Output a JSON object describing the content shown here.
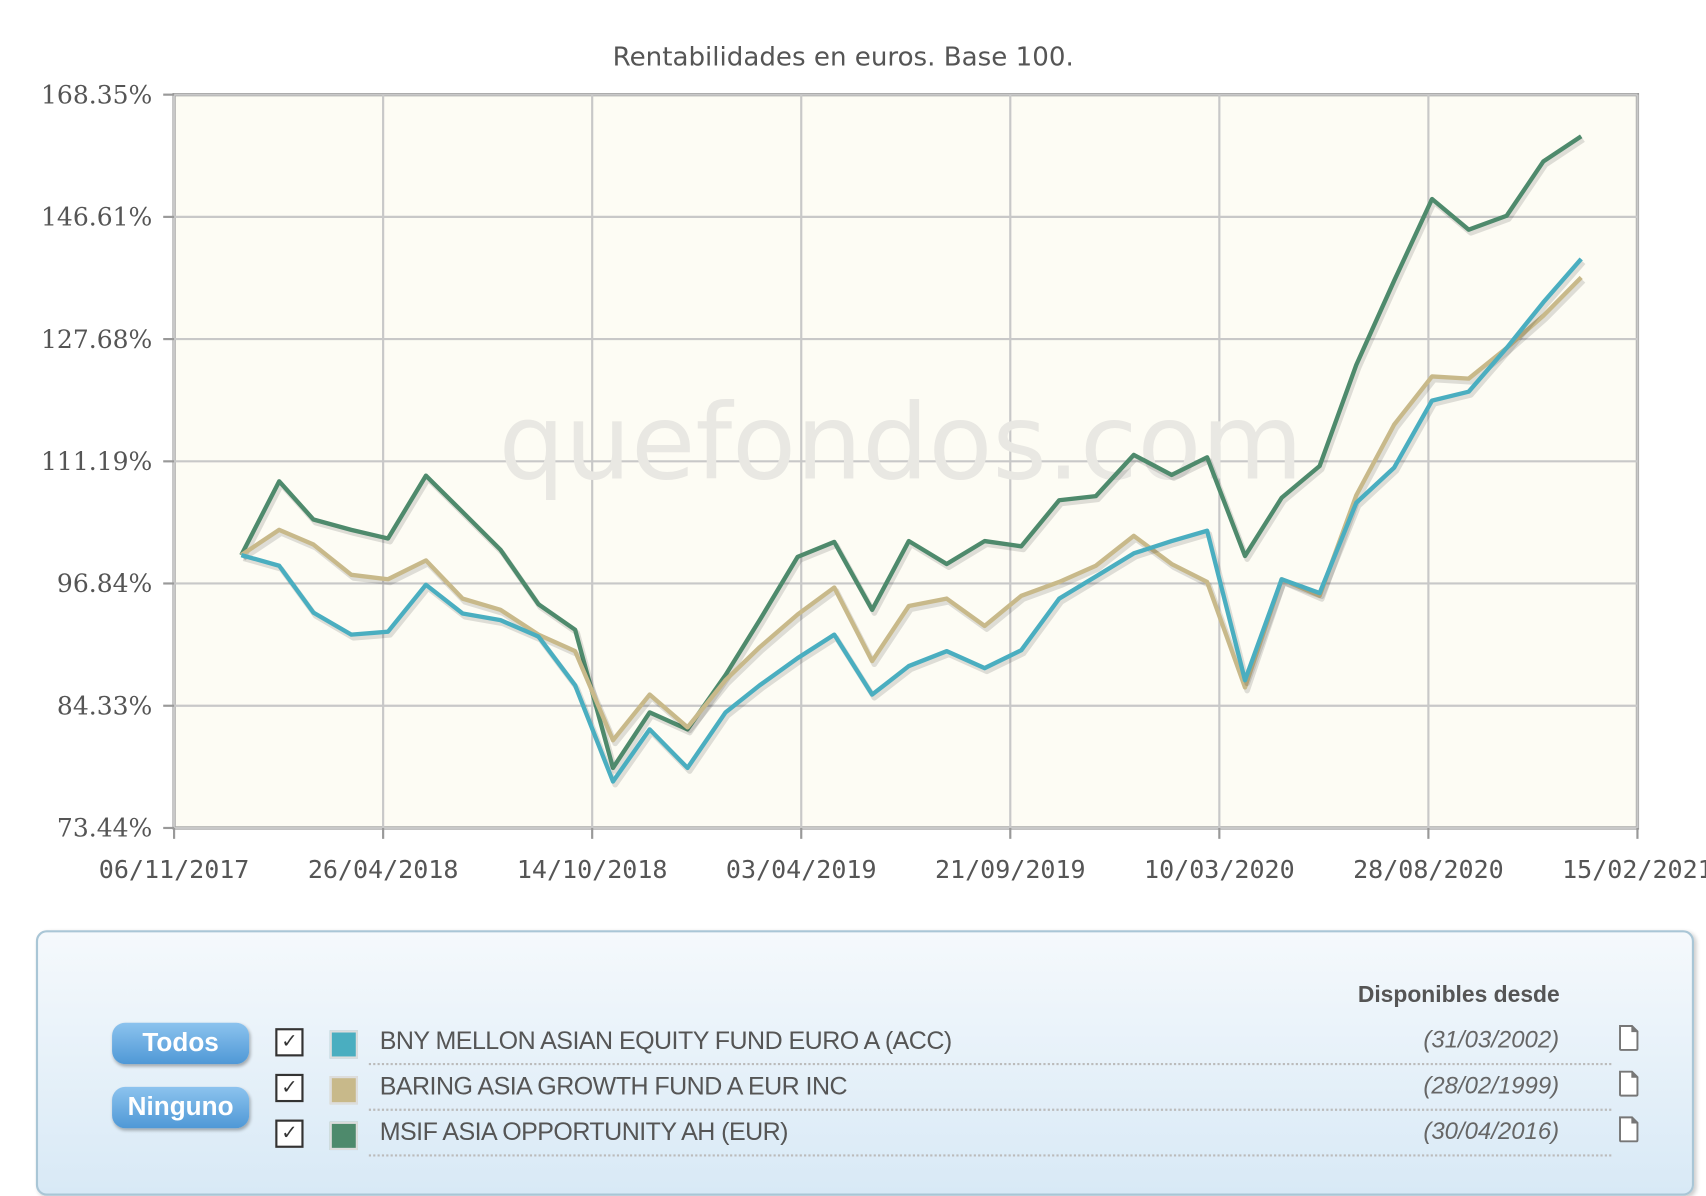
{
  "chart_data": {
    "type": "line",
    "title": "Rentabilidades en euros. Base 100.",
    "watermark": "quefondos.com",
    "y_scale": "log",
    "ylim": [
      73.44,
      168.35
    ],
    "y_ticks": [
      "168.35%",
      "146.61%",
      "127.68%",
      "111.19%",
      "96.84%",
      "84.33%",
      "73.44%"
    ],
    "y_tick_values": [
      168.35,
      146.61,
      127.68,
      111.19,
      96.84,
      84.33,
      73.44
    ],
    "x_ticks": [
      "06/11/2017",
      "26/04/2018",
      "14/10/2018",
      "03/04/2019",
      "21/09/2019",
      "10/03/2020",
      "28/08/2020",
      "15/02/2021"
    ],
    "xlim": [
      "06/11/2017",
      "15/02/2021"
    ],
    "grid": true,
    "x": [
      "31/12/2017",
      "31/01/2018",
      "28/02/2018",
      "31/03/2018",
      "30/04/2018",
      "31/05/2018",
      "30/06/2018",
      "31/07/2018",
      "31/08/2018",
      "30/09/2018",
      "31/10/2018",
      "30/11/2018",
      "31/12/2018",
      "31/01/2019",
      "28/02/2019",
      "31/03/2019",
      "30/04/2019",
      "31/05/2019",
      "30/06/2019",
      "31/07/2019",
      "31/08/2019",
      "30/09/2019",
      "31/10/2019",
      "30/11/2019",
      "31/12/2019",
      "31/01/2020",
      "29/02/2020",
      "31/03/2020",
      "30/04/2020",
      "31/05/2020",
      "30/06/2020",
      "31/07/2020",
      "31/08/2020",
      "30/09/2020",
      "31/10/2020",
      "30/11/2020",
      "31/12/2020"
    ],
    "series": [
      {
        "name": "BNY MELLON ASIAN EQUITY FUND EURO A (ACC)",
        "color": "#4aaec0",
        "values": [
          100,
          98.8,
          93.7,
          91.4,
          91.7,
          96.7,
          93.6,
          92.9,
          91.2,
          86.3,
          77.4,
          82.1,
          78.6,
          83.7,
          86.3,
          89.0,
          91.4,
          85.4,
          88.2,
          89.7,
          88.0,
          89.8,
          95.2,
          97.6,
          100.2,
          101.6,
          102.8,
          86.8,
          97.3,
          95.8,
          106.1,
          110.4,
          119.1,
          120.3,
          126.4,
          133.1,
          139.8
        ]
      },
      {
        "name": "BARING ASIA GROWTH FUND A EUR INC",
        "color": "#c8b98a",
        "values": [
          100,
          102.9,
          101.2,
          97.8,
          97.3,
          99.4,
          95.2,
          94.0,
          91.4,
          89.7,
          81.1,
          85.4,
          82.3,
          86.8,
          90.1,
          93.5,
          96.4,
          88.7,
          94.4,
          95.2,
          92.3,
          95.5,
          97.0,
          98.8,
          102.2,
          99.0,
          97.0,
          86.1,
          97.3,
          95.5,
          107.0,
          115.9,
          122.4,
          122.1,
          126.4,
          131.1,
          136.9
        ]
      },
      {
        "name": "MSIF ASIA OPPORTUNITY AH (EUR)",
        "color": "#4e8a6c",
        "values": [
          100,
          108.7,
          104.1,
          102.9,
          101.9,
          109.4,
          105.0,
          100.6,
          94.6,
          91.9,
          78.6,
          83.7,
          82.1,
          87.3,
          92.9,
          99.8,
          101.5,
          94.0,
          101.6,
          99.0,
          101.6,
          101.0,
          106.4,
          106.9,
          112.0,
          109.5,
          111.7,
          99.9,
          106.7,
          110.6,
          124.0,
          136.4,
          149.6,
          144.5,
          146.8,
          156.1,
          160.6
        ]
      }
    ]
  },
  "legend": {
    "buttons": {
      "all": "Todos",
      "none": "Ninguno"
    },
    "available_header": "Disponibles desde",
    "items": [
      {
        "name": "BNY MELLON ASIAN EQUITY FUND EURO A (ACC)",
        "since": "(31/03/2002)",
        "checked": true,
        "color": "#4aaec0",
        "icon": "document-icon"
      },
      {
        "name": "BARING ASIA GROWTH FUND A EUR INC",
        "since": "(28/02/1999)",
        "checked": true,
        "color": "#c8b98a",
        "icon": "document-icon"
      },
      {
        "name": "MSIF ASIA OPPORTUNITY AH (EUR)",
        "since": "(30/04/2016)",
        "checked": true,
        "color": "#4e8a6c",
        "icon": "document-icon"
      }
    ]
  }
}
